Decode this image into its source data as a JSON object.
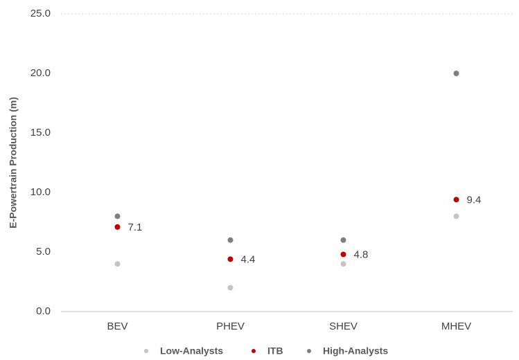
{
  "chart_data": {
    "type": "scatter",
    "y_label": "E-Powertrain Production (m)",
    "categories": [
      "BEV",
      "PHEV",
      "SHEV",
      "MHEV"
    ],
    "series": [
      {
        "name": "Low-Analysts",
        "color": "#c4c4c4",
        "values": [
          4,
          2,
          4,
          8
        ]
      },
      {
        "name": "ITB",
        "color": "#c00000",
        "values": [
          7.1,
          4.4,
          4.8,
          9.4
        ],
        "show_labels": true
      },
      {
        "name": "High-Analysts",
        "color": "#7f7f7f",
        "values": [
          8,
          6,
          6,
          20
        ]
      }
    ],
    "ylim": [
      0,
      25
    ],
    "yticks": [
      {
        "value": 0,
        "label": "0.0"
      },
      {
        "value": 5,
        "label": "5.0"
      },
      {
        "value": 10,
        "label": "10.0"
      },
      {
        "value": 15,
        "label": "15.0"
      },
      {
        "value": 20,
        "label": "20.0"
      },
      {
        "value": 25,
        "label": "25.0"
      }
    ],
    "legend": "bottom"
  }
}
